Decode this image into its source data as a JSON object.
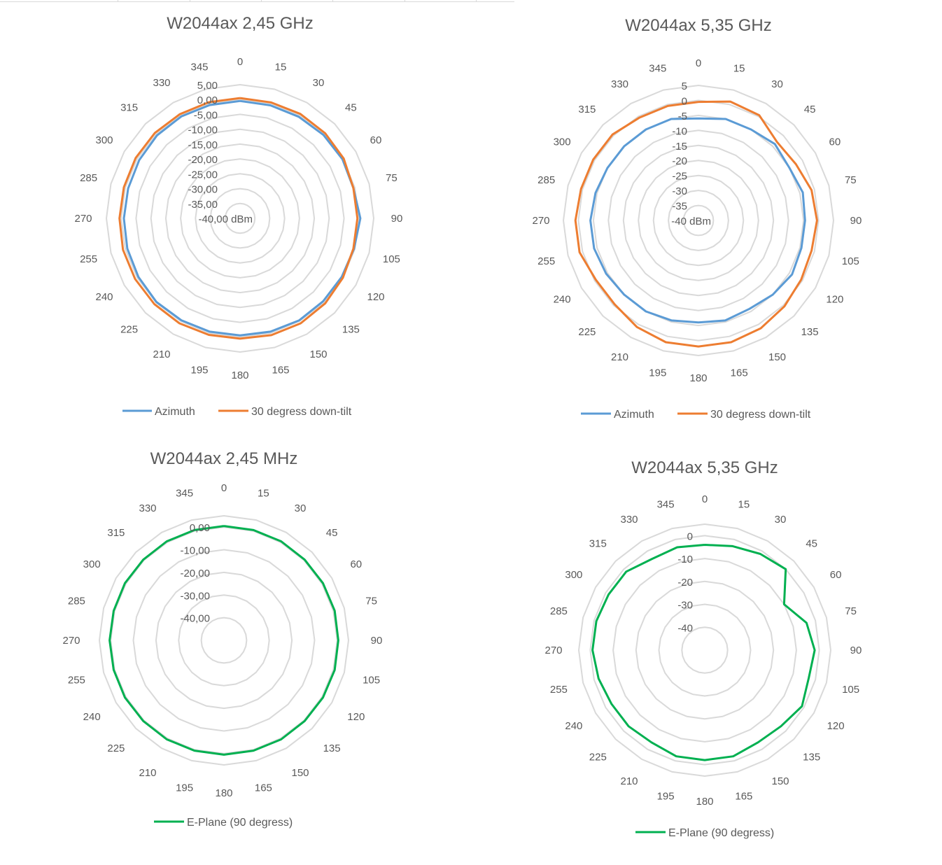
{
  "angles": [
    0,
    15,
    30,
    45,
    60,
    75,
    90,
    105,
    120,
    135,
    150,
    165,
    180,
    195,
    210,
    225,
    240,
    255,
    270,
    285,
    300,
    315,
    330,
    345
  ],
  "colors": {
    "azimuth": "#5b9bd5",
    "downtilt": "#ed7d31",
    "eplane": "#00b050",
    "grid": "#d9d9d9",
    "text": "#595959"
  },
  "chart_data": [
    {
      "type": "radar",
      "title": "W2044ax 2,45 GHz",
      "rmin": -40,
      "rmax": 5,
      "ticks": [
        "-40,00 dBm",
        "-35,00",
        "-30,00",
        "-25,00",
        "-20,00",
        "-15,00",
        "-10,00",
        "-5,00",
        "0,00",
        "5,00"
      ],
      "grid": true,
      "legend_position": "bottom",
      "series": [
        {
          "name": "Azimuth",
          "color": "#5b9bd5",
          "values": [
            -0.5,
            -0.6,
            -0.5,
            -0.3,
            -0.2,
            -0.5,
            0.5,
            -0.3,
            -0.5,
            -0.5,
            -0.3,
            -0.5,
            -0.6,
            -0.5,
            -0.4,
            -0.2,
            -0.5,
            -0.7,
            -0.9,
            -1.0,
            -0.8,
            -0.5,
            -0.4,
            -0.5
          ]
        },
        {
          "name": "30 degress down-tilt",
          "color": "#ed7d31",
          "values": [
            0.5,
            0.4,
            0.6,
            0.5,
            0.3,
            -0.5,
            -0.5,
            -0.5,
            0.0,
            0.5,
            0.8,
            0.7,
            0.5,
            0.6,
            0.8,
            0.8,
            0.8,
            0.8,
            0.6,
            0.5,
            0.6,
            0.6,
            0.5,
            0.5
          ]
        }
      ]
    },
    {
      "type": "radar",
      "title": "W2044ax 5,35 GHz",
      "rmin": -40,
      "rmax": 5,
      "ticks": [
        "-40 dBm",
        "-35",
        "-30",
        "-25",
        "-20",
        "-15",
        "-10",
        "-5",
        "0",
        "5"
      ],
      "grid": true,
      "legend_position": "bottom",
      "series": [
        {
          "name": "Azimuth",
          "color": "#5b9bd5",
          "values": [
            -6,
            -5,
            -5,
            -4,
            -5,
            -4,
            -4.5,
            -4.5,
            -4,
            -5,
            -6,
            -5.5,
            -6,
            -5.5,
            -5,
            -5,
            -4.5,
            -4,
            -4,
            -4.5,
            -5,
            -5,
            -5,
            -5
          ]
        },
        {
          "name": "30 degress down-tilt",
          "color": "#ed7d31",
          "values": [
            -0.5,
            1,
            0.5,
            -3,
            -2.5,
            -1,
            -0.5,
            -1,
            -0.5,
            0.5,
            1.5,
            2,
            2,
            2,
            1,
            -0.5,
            -0.5,
            1,
            1,
            0.5,
            0.5,
            0.5,
            -0.5,
            -0.5
          ]
        }
      ]
    },
    {
      "type": "radar",
      "title": "W2044ax 2,45 MHz",
      "rmin": -50,
      "rmax": 5,
      "ticks": [
        "-40,00",
        "-30,00",
        "-20,00",
        "-10,00",
        "0,00"
      ],
      "tick_values": [
        -40,
        -30,
        -20,
        -10,
        0
      ],
      "grid": true,
      "legend_position": "bottom",
      "series": [
        {
          "name": "E-Plane (90 degress)",
          "color": "#00b050",
          "values": [
            0.5,
            0.4,
            0.5,
            0.4,
            0.5,
            0.6,
            0.5,
            0.6,
            0.5,
            0.4,
            0.5,
            0.4,
            0.5,
            0.4,
            0.5,
            0.4,
            0.5,
            0.4,
            0.5,
            0.4,
            0.5,
            0.4,
            0.5,
            0.4
          ]
        }
      ]
    },
    {
      "type": "radar",
      "title": "W2044ax 5,35 GHz",
      "rmin": -50,
      "rmax": 5,
      "ticks": [
        "-40",
        "-30",
        "-20",
        "-10",
        "0"
      ],
      "tick_values": [
        -40,
        -30,
        -20,
        -10,
        0
      ],
      "grid": true,
      "legend_position": "bottom",
      "series": [
        {
          "name": "E-Plane (90 degress)",
          "color": "#00b050",
          "values": [
            -4,
            -3,
            -1.5,
            0,
            -10,
            -4,
            -2,
            -3,
            -1,
            -3,
            -3.5,
            -2,
            -2,
            -2,
            -3.5,
            -3,
            -3,
            -2,
            -1,
            -1,
            -1.5,
            -1.5,
            -4,
            -3.5
          ]
        }
      ]
    }
  ]
}
